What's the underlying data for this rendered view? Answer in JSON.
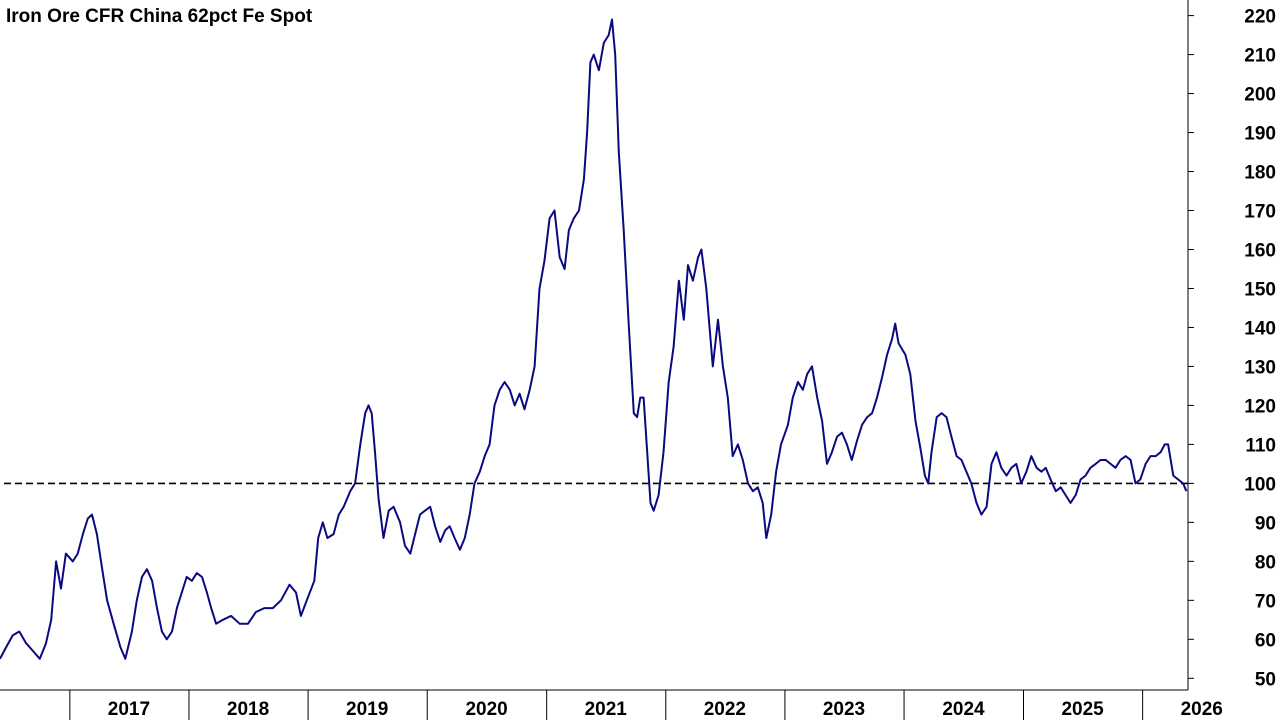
{
  "chart_data": {
    "type": "line",
    "title": "Iron Ore CFR China 62pct Fe Spot",
    "xlabel": "",
    "ylabel": "",
    "ylim": [
      47,
      224
    ],
    "xlim": [
      "2016-06-01",
      "2026-05-20"
    ],
    "y_ticks": [
      50,
      60,
      70,
      80,
      90,
      100,
      110,
      120,
      130,
      140,
      150,
      160,
      170,
      180,
      190,
      200,
      210,
      220
    ],
    "x_ticks": [
      {
        "label": "2017",
        "date": "2017-01-01"
      },
      {
        "label": "2018",
        "date": "2018-01-01"
      },
      {
        "label": "2019",
        "date": "2019-01-01"
      },
      {
        "label": "2020",
        "date": "2020-01-01"
      },
      {
        "label": "2021",
        "date": "2021-01-01"
      },
      {
        "label": "2022",
        "date": "2022-01-01"
      },
      {
        "label": "2023",
        "date": "2023-01-01"
      },
      {
        "label": "2024",
        "date": "2024-01-01"
      },
      {
        "label": "2025",
        "date": "2025-01-01"
      },
      {
        "label": "2026",
        "date": "2026-01-01"
      }
    ],
    "y_axis_position": "right",
    "grid": false,
    "reference_line": {
      "y": 100,
      "style": "dashed",
      "color": "#000000"
    },
    "series": [
      {
        "color": "#0a0a80",
        "points": [
          [
            "2016-06-01",
            55
          ],
          [
            "2016-06-20",
            58
          ],
          [
            "2016-07-10",
            61
          ],
          [
            "2016-07-30",
            62
          ],
          [
            "2016-08-20",
            59
          ],
          [
            "2016-09-10",
            57
          ],
          [
            "2016-10-01",
            55
          ],
          [
            "2016-10-20",
            59
          ],
          [
            "2016-11-05",
            65
          ],
          [
            "2016-11-20",
            80
          ],
          [
            "2016-12-05",
            73
          ],
          [
            "2016-12-20",
            82
          ],
          [
            "2017-01-10",
            80
          ],
          [
            "2017-01-25",
            82
          ],
          [
            "2017-02-10",
            87
          ],
          [
            "2017-02-25",
            91
          ],
          [
            "2017-03-10",
            92
          ],
          [
            "2017-03-25",
            87
          ],
          [
            "2017-04-10",
            78
          ],
          [
            "2017-04-25",
            70
          ],
          [
            "2017-05-15",
            64
          ],
          [
            "2017-06-05",
            58
          ],
          [
            "2017-06-20",
            55
          ],
          [
            "2017-07-10",
            62
          ],
          [
            "2017-07-25",
            70
          ],
          [
            "2017-08-10",
            76
          ],
          [
            "2017-08-25",
            78
          ],
          [
            "2017-09-10",
            75
          ],
          [
            "2017-09-25",
            68
          ],
          [
            "2017-10-10",
            62
          ],
          [
            "2017-10-25",
            60
          ],
          [
            "2017-11-10",
            62
          ],
          [
            "2017-11-25",
            68
          ],
          [
            "2017-12-10",
            72
          ],
          [
            "2017-12-25",
            76
          ],
          [
            "2018-01-10",
            75
          ],
          [
            "2018-01-25",
            77
          ],
          [
            "2018-02-10",
            76
          ],
          [
            "2018-02-25",
            72
          ],
          [
            "2018-03-10",
            68
          ],
          [
            "2018-03-25",
            64
          ],
          [
            "2018-04-15",
            65
          ],
          [
            "2018-05-10",
            66
          ],
          [
            "2018-06-05",
            64
          ],
          [
            "2018-07-01",
            64
          ],
          [
            "2018-07-25",
            67
          ],
          [
            "2018-08-20",
            68
          ],
          [
            "2018-09-15",
            68
          ],
          [
            "2018-10-10",
            70
          ],
          [
            "2018-11-05",
            74
          ],
          [
            "2018-11-25",
            72
          ],
          [
            "2018-12-10",
            66
          ],
          [
            "2018-12-28",
            70
          ],
          [
            "2019-01-20",
            75
          ],
          [
            "2019-02-01",
            86
          ],
          [
            "2019-02-15",
            90
          ],
          [
            "2019-03-01",
            86
          ],
          [
            "2019-03-20",
            87
          ],
          [
            "2019-04-05",
            92
          ],
          [
            "2019-04-20",
            94
          ],
          [
            "2019-05-10",
            98
          ],
          [
            "2019-05-25",
            100
          ],
          [
            "2019-06-10",
            110
          ],
          [
            "2019-06-25",
            118
          ],
          [
            "2019-07-05",
            120
          ],
          [
            "2019-07-15",
            118
          ],
          [
            "2019-07-25",
            108
          ],
          [
            "2019-08-05",
            96
          ],
          [
            "2019-08-20",
            86
          ],
          [
            "2019-09-05",
            93
          ],
          [
            "2019-09-20",
            94
          ],
          [
            "2019-10-10",
            90
          ],
          [
            "2019-10-25",
            84
          ],
          [
            "2019-11-10",
            82
          ],
          [
            "2019-11-25",
            87
          ],
          [
            "2019-12-10",
            92
          ],
          [
            "2019-12-25",
            93
          ],
          [
            "2020-01-10",
            94
          ],
          [
            "2020-01-25",
            89
          ],
          [
            "2020-02-10",
            85
          ],
          [
            "2020-02-25",
            88
          ],
          [
            "2020-03-10",
            89
          ],
          [
            "2020-03-25",
            86
          ],
          [
            "2020-04-10",
            83
          ],
          [
            "2020-04-25",
            86
          ],
          [
            "2020-05-10",
            92
          ],
          [
            "2020-05-25",
            100
          ],
          [
            "2020-06-10",
            103
          ],
          [
            "2020-06-25",
            107
          ],
          [
            "2020-07-10",
            110
          ],
          [
            "2020-07-25",
            120
          ],
          [
            "2020-08-10",
            124
          ],
          [
            "2020-08-25",
            126
          ],
          [
            "2020-09-10",
            124
          ],
          [
            "2020-09-25",
            120
          ],
          [
            "2020-10-10",
            123
          ],
          [
            "2020-10-25",
            119
          ],
          [
            "2020-11-10",
            124
          ],
          [
            "2020-11-25",
            130
          ],
          [
            "2020-12-10",
            150
          ],
          [
            "2020-12-25",
            157
          ],
          [
            "2021-01-10",
            168
          ],
          [
            "2021-01-25",
            170
          ],
          [
            "2021-02-10",
            158
          ],
          [
            "2021-02-25",
            155
          ],
          [
            "2021-03-10",
            165
          ],
          [
            "2021-03-25",
            168
          ],
          [
            "2021-04-10",
            170
          ],
          [
            "2021-04-25",
            178
          ],
          [
            "2021-05-05",
            190
          ],
          [
            "2021-05-15",
            208
          ],
          [
            "2021-05-25",
            210
          ],
          [
            "2021-06-10",
            206
          ],
          [
            "2021-06-25",
            213
          ],
          [
            "2021-07-10",
            215
          ],
          [
            "2021-07-20",
            219
          ],
          [
            "2021-07-30",
            210
          ],
          [
            "2021-08-10",
            185
          ],
          [
            "2021-08-25",
            165
          ],
          [
            "2021-09-10",
            140
          ],
          [
            "2021-09-25",
            118
          ],
          [
            "2021-10-05",
            117
          ],
          [
            "2021-10-15",
            122
          ],
          [
            "2021-10-25",
            122
          ],
          [
            "2021-11-05",
            108
          ],
          [
            "2021-11-15",
            95
          ],
          [
            "2021-11-25",
            93
          ],
          [
            "2021-12-10",
            97
          ],
          [
            "2021-12-25",
            108
          ],
          [
            "2022-01-10",
            126
          ],
          [
            "2022-01-25",
            135
          ],
          [
            "2022-02-10",
            152
          ],
          [
            "2022-02-25",
            142
          ],
          [
            "2022-03-10",
            156
          ],
          [
            "2022-03-25",
            152
          ],
          [
            "2022-04-10",
            158
          ],
          [
            "2022-04-20",
            160
          ],
          [
            "2022-05-05",
            150
          ],
          [
            "2022-05-25",
            130
          ],
          [
            "2022-06-10",
            142
          ],
          [
            "2022-06-25",
            130
          ],
          [
            "2022-07-10",
            122
          ],
          [
            "2022-07-25",
            107
          ],
          [
            "2022-08-10",
            110
          ],
          [
            "2022-08-25",
            106
          ],
          [
            "2022-09-10",
            100
          ],
          [
            "2022-09-25",
            98
          ],
          [
            "2022-10-10",
            99
          ],
          [
            "2022-10-25",
            95
          ],
          [
            "2022-11-05",
            86
          ],
          [
            "2022-11-20",
            92
          ],
          [
            "2022-12-05",
            103
          ],
          [
            "2022-12-20",
            110
          ],
          [
            "2023-01-10",
            115
          ],
          [
            "2023-01-25",
            122
          ],
          [
            "2023-02-10",
            126
          ],
          [
            "2023-02-25",
            124
          ],
          [
            "2023-03-10",
            128
          ],
          [
            "2023-03-25",
            130
          ],
          [
            "2023-04-10",
            122
          ],
          [
            "2023-04-25",
            116
          ],
          [
            "2023-05-10",
            105
          ],
          [
            "2023-05-25",
            108
          ],
          [
            "2023-06-10",
            112
          ],
          [
            "2023-06-25",
            113
          ],
          [
            "2023-07-10",
            110
          ],
          [
            "2023-07-25",
            106
          ],
          [
            "2023-08-10",
            111
          ],
          [
            "2023-08-25",
            115
          ],
          [
            "2023-09-10",
            117
          ],
          [
            "2023-09-25",
            118
          ],
          [
            "2023-10-10",
            122
          ],
          [
            "2023-10-25",
            127
          ],
          [
            "2023-11-10",
            133
          ],
          [
            "2023-11-25",
            137
          ],
          [
            "2023-12-05",
            141
          ],
          [
            "2023-12-15",
            136
          ],
          [
            "2024-01-05",
            133
          ],
          [
            "2024-01-20",
            128
          ],
          [
            "2024-02-05",
            116
          ],
          [
            "2024-02-20",
            109
          ],
          [
            "2024-03-05",
            102
          ],
          [
            "2024-03-15",
            100
          ],
          [
            "2024-03-25",
            108
          ],
          [
            "2024-04-10",
            117
          ],
          [
            "2024-04-25",
            118
          ],
          [
            "2024-05-10",
            117
          ],
          [
            "2024-05-25",
            112
          ],
          [
            "2024-06-10",
            107
          ],
          [
            "2024-06-25",
            106
          ],
          [
            "2024-07-10",
            103
          ],
          [
            "2024-07-25",
            100
          ],
          [
            "2024-08-10",
            95
          ],
          [
            "2024-08-25",
            92
          ],
          [
            "2024-09-10",
            94
          ],
          [
            "2024-09-25",
            105
          ],
          [
            "2024-10-10",
            108
          ],
          [
            "2024-10-25",
            104
          ],
          [
            "2024-11-10",
            102
          ],
          [
            "2024-11-25",
            104
          ],
          [
            "2024-12-10",
            105
          ],
          [
            "2024-12-25",
            100
          ],
          [
            "2025-01-10",
            103
          ],
          [
            "2025-01-25",
            107
          ],
          [
            "2025-02-10",
            104
          ],
          [
            "2025-02-25",
            103
          ],
          [
            "2025-03-10",
            104
          ],
          [
            "2025-03-25",
            101
          ],
          [
            "2025-04-10",
            98
          ],
          [
            "2025-04-25",
            99
          ],
          [
            "2025-05-10",
            97
          ],
          [
            "2025-05-25",
            95
          ],
          [
            "2025-06-10",
            97
          ],
          [
            "2025-06-25",
            101
          ],
          [
            "2025-07-10",
            102
          ],
          [
            "2025-07-25",
            104
          ],
          [
            "2025-08-10",
            105
          ],
          [
            "2025-08-25",
            106
          ],
          [
            "2025-09-10",
            106
          ],
          [
            "2025-09-25",
            105
          ],
          [
            "2025-10-10",
            104
          ],
          [
            "2025-10-25",
            106
          ],
          [
            "2025-11-10",
            107
          ],
          [
            "2025-11-25",
            106
          ],
          [
            "2025-12-10",
            100
          ],
          [
            "2025-12-25",
            101
          ],
          [
            "2026-01-10",
            105
          ],
          [
            "2026-01-25",
            107
          ],
          [
            "2026-02-10",
            107
          ],
          [
            "2026-02-25",
            108
          ],
          [
            "2026-03-10",
            110
          ],
          [
            "2026-03-20",
            110
          ],
          [
            "2026-04-05",
            102
          ],
          [
            "2026-04-20",
            101
          ],
          [
            "2026-05-05",
            100
          ],
          [
            "2026-05-15",
            98
          ]
        ]
      }
    ]
  }
}
